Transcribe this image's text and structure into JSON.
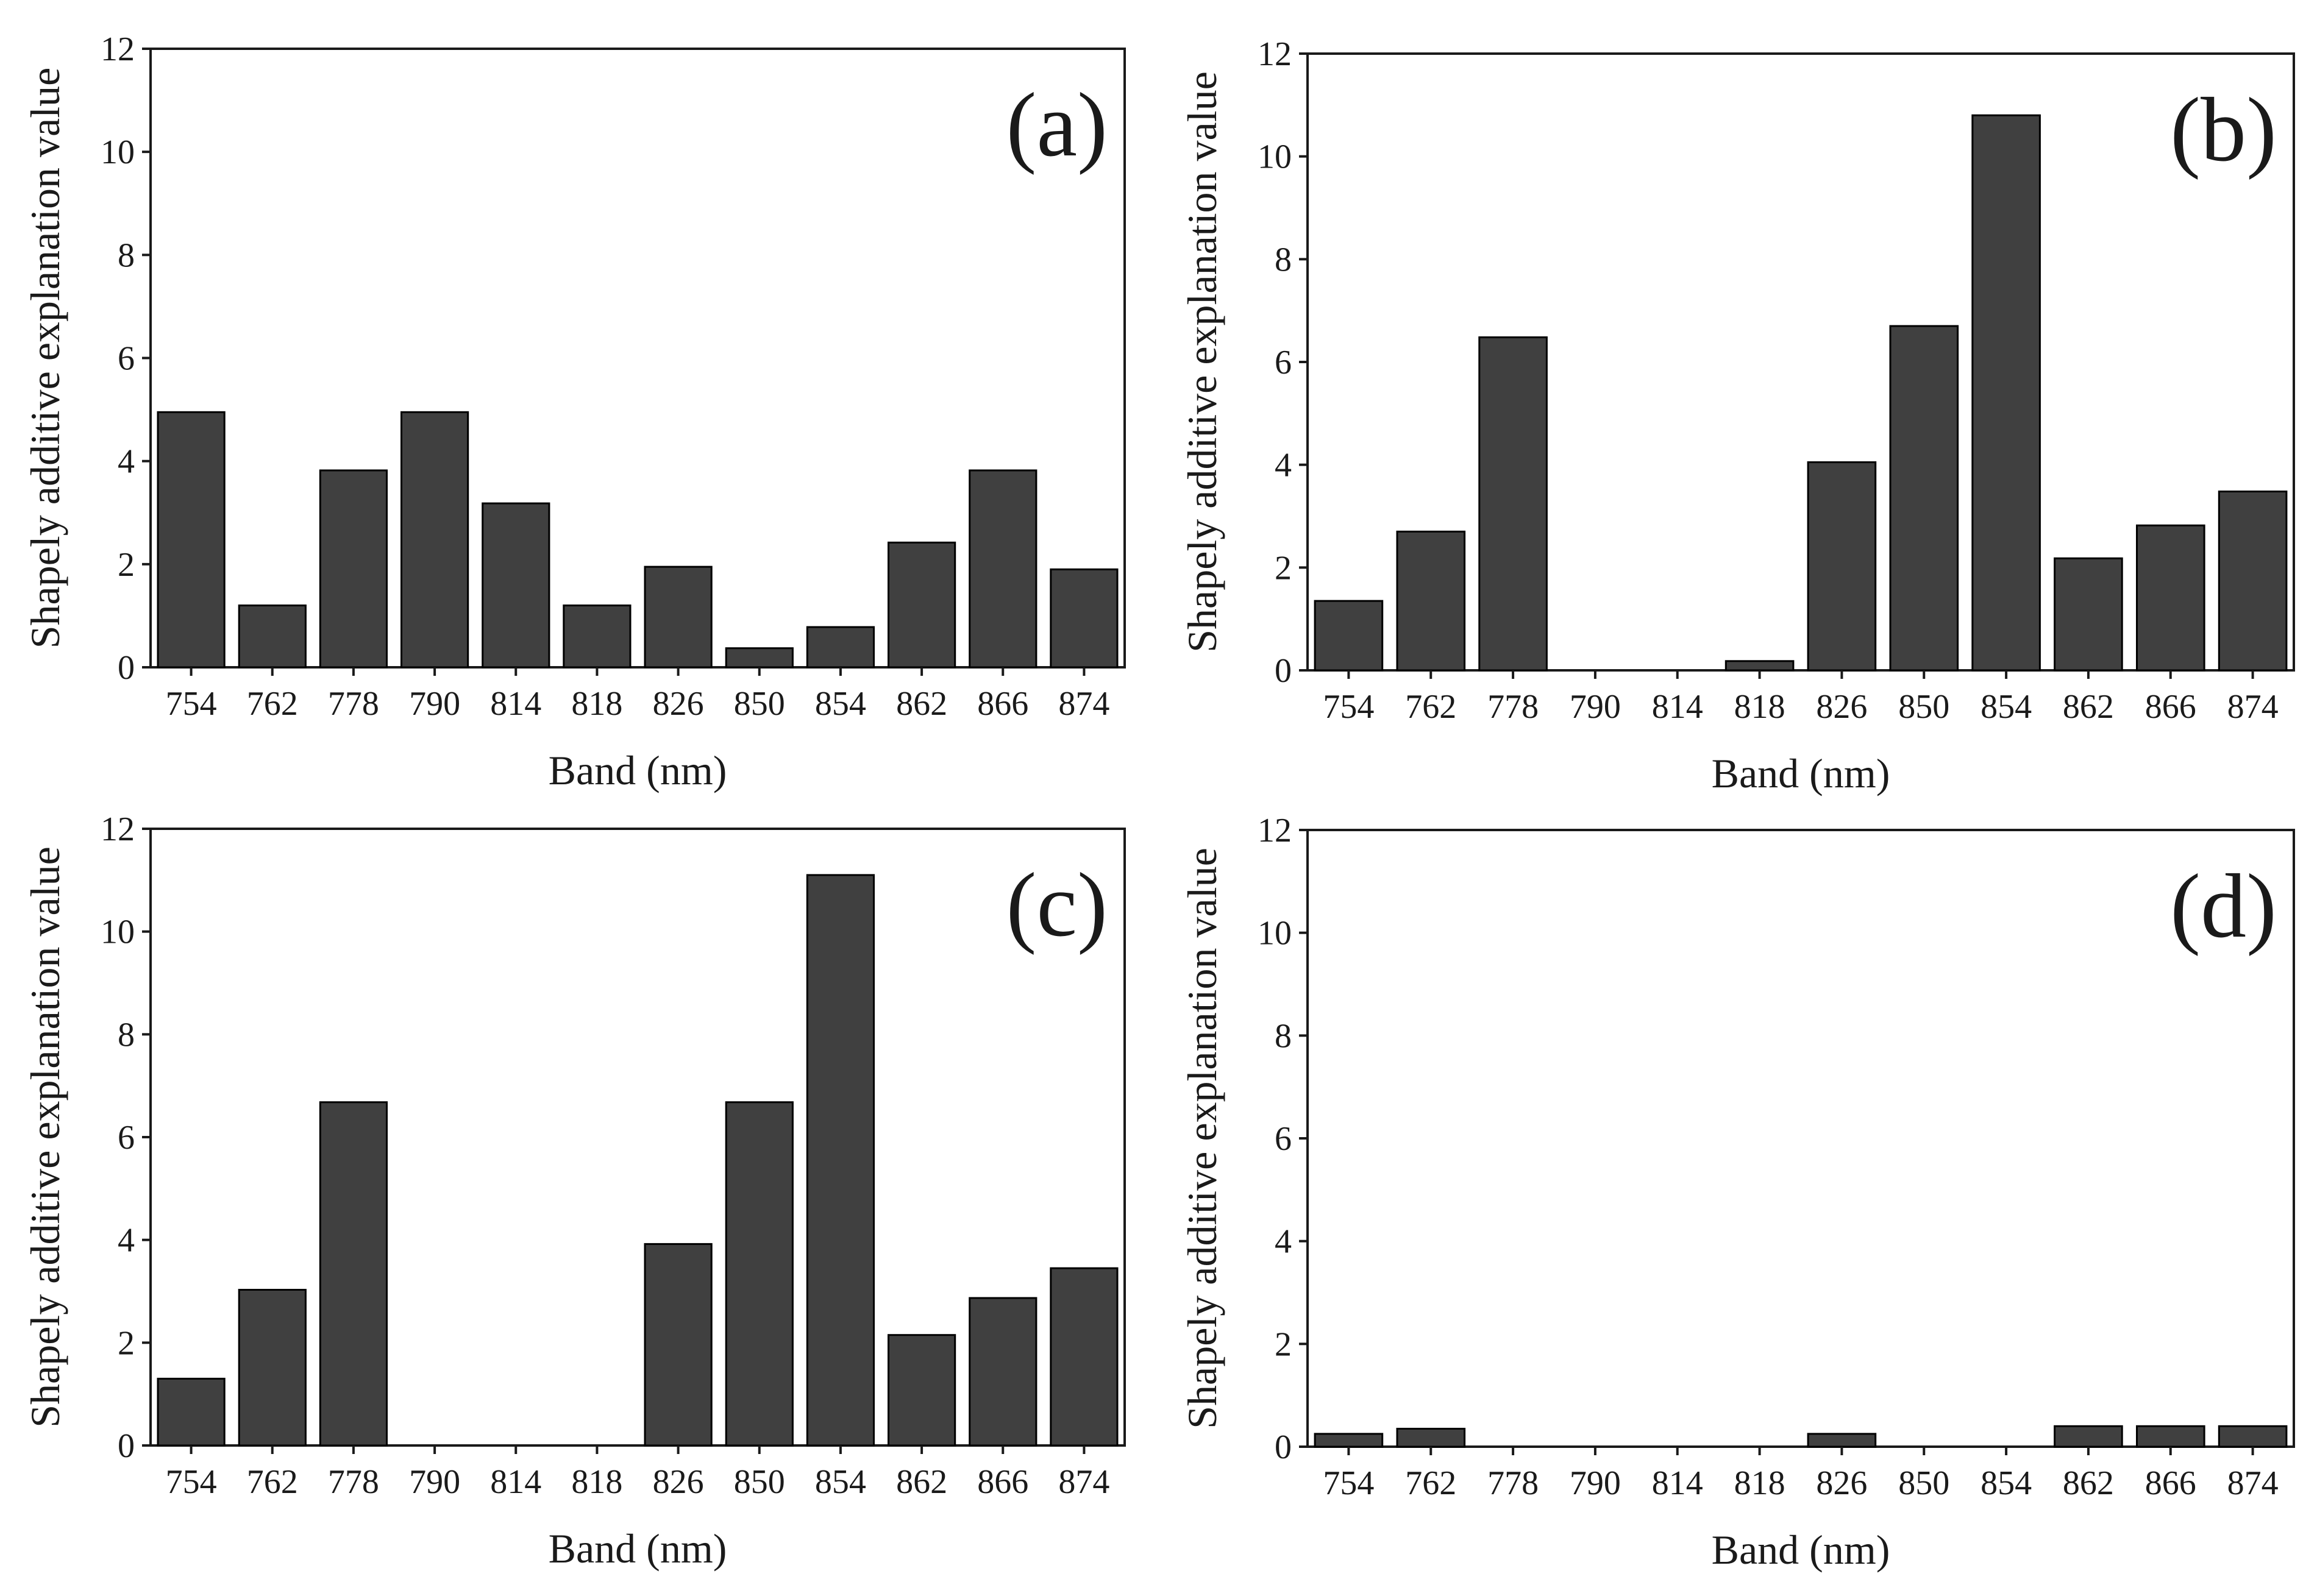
{
  "colors": {
    "bar": "#404040",
    "axis": "#1a1a1a",
    "background": "#ffffff"
  },
  "chart_data": [
    {
      "type": "bar",
      "panel_label": "(a)",
      "xlabel": "Band (nm)",
      "ylabel": "Shapely additive explanation value",
      "categories": [
        "754",
        "762",
        "778",
        "790",
        "814",
        "818",
        "826",
        "850",
        "854",
        "862",
        "866",
        "874"
      ],
      "values": [
        4.95,
        1.2,
        3.82,
        4.95,
        3.18,
        1.2,
        1.95,
        0.37,
        0.78,
        2.42,
        3.82,
        1.9
      ],
      "ylim": [
        0,
        12
      ],
      "yticks": [
        "0",
        "2",
        "4",
        "6",
        "8",
        "10",
        "12"
      ]
    },
    {
      "type": "bar",
      "panel_label": "(b)",
      "xlabel": "Band (nm)",
      "ylabel": "Shapely additive explanation value",
      "categories": [
        "754",
        "762",
        "778",
        "790",
        "814",
        "818",
        "826",
        "850",
        "854",
        "862",
        "866",
        "874"
      ],
      "values": [
        1.35,
        2.7,
        6.48,
        0,
        0,
        0.18,
        4.05,
        6.7,
        10.8,
        2.18,
        2.82,
        3.48
      ],
      "ylim": [
        0,
        12
      ],
      "yticks": [
        "0",
        "2",
        "4",
        "6",
        "8",
        "10",
        "12"
      ]
    },
    {
      "type": "bar",
      "panel_label": "(c)",
      "xlabel": "Band (nm)",
      "ylabel": "Shapely additive explanation value",
      "categories": [
        "754",
        "762",
        "778",
        "790",
        "814",
        "818",
        "826",
        "850",
        "854",
        "862",
        "866",
        "874"
      ],
      "values": [
        1.3,
        3.03,
        6.68,
        0,
        0,
        0,
        3.92,
        6.68,
        11.1,
        2.15,
        2.87,
        3.45
      ],
      "ylim": [
        0,
        12
      ],
      "yticks": [
        "0",
        "2",
        "4",
        "6",
        "8",
        "10",
        "12"
      ]
    },
    {
      "type": "bar",
      "panel_label": "(d)",
      "xlabel": "Band (nm)",
      "ylabel": "Shapely additive explanation value",
      "categories": [
        "754",
        "762",
        "778",
        "790",
        "814",
        "818",
        "826",
        "850",
        "854",
        "862",
        "866",
        "874"
      ],
      "values": [
        0.25,
        0.35,
        0,
        0,
        0,
        0,
        0.25,
        0,
        0,
        0.4,
        0.4,
        0.4
      ],
      "ylim": [
        0,
        12
      ],
      "yticks": [
        "0",
        "2",
        "4",
        "6",
        "8",
        "10",
        "12"
      ]
    }
  ]
}
